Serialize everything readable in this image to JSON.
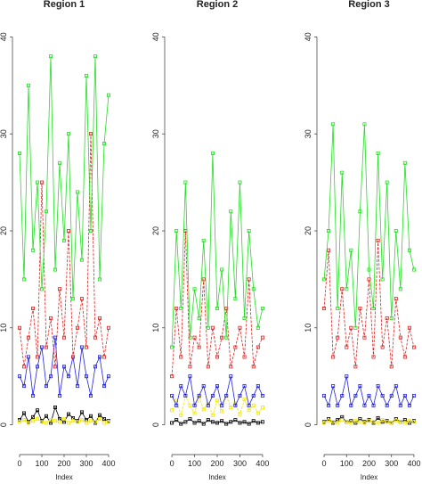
{
  "chart_data": [
    {
      "type": "line",
      "title": "Region 1",
      "xlabel": "Index",
      "x": [
        0,
        20,
        40,
        60,
        80,
        100,
        120,
        140,
        160,
        180,
        200,
        220,
        240,
        260,
        280,
        300,
        320,
        340,
        360,
        380,
        400
      ],
      "xlim": [
        -16,
        416
      ],
      "ylim": [
        -1.6,
        41.6
      ],
      "xticks": [
        0,
        100,
        200,
        300,
        400
      ],
      "yticks": [
        0,
        10,
        20,
        30,
        40
      ],
      "series": [
        {
          "color": "#000000",
          "values": [
            0.5,
            1.2,
            0.3,
            0.8,
            1.5,
            0.4,
            0.9,
            0.2,
            1.8,
            0.6,
            0.3,
            1.1,
            0.7,
            0.4,
            1.3,
            0.5,
            0.9,
            0.2,
            1.0,
            0.6,
            0.4
          ]
        },
        {
          "color": "#f2e600",
          "values": [
            0.3,
            0.5,
            0.2,
            0.4,
            0.6,
            0.3,
            0.2,
            0.5,
            0.4,
            0.3,
            0.6,
            0.2,
            0.4,
            0.3,
            0.5,
            0.2,
            0.4,
            0.3,
            0.6,
            0.2,
            0.3
          ]
        },
        {
          "color": "#2020e0",
          "values": [
            5,
            4,
            7,
            3,
            6,
            8,
            4,
            5,
            9,
            3,
            6,
            5,
            7,
            4,
            8,
            5,
            3,
            6,
            7,
            4,
            5
          ]
        },
        {
          "color": "#e02020",
          "values": [
            10,
            6,
            9,
            12,
            7,
            25,
            8,
            11,
            6,
            14,
            9,
            20,
            7,
            10,
            13,
            8,
            30,
            9,
            11,
            7,
            10
          ]
        },
        {
          "color": "#22dd22",
          "values": [
            28,
            15,
            35,
            18,
            25,
            14,
            22,
            38,
            16,
            27,
            19,
            30,
            13,
            24,
            17,
            36,
            20,
            38,
            15,
            29,
            34
          ]
        }
      ]
    },
    {
      "type": "line",
      "title": "Region 2",
      "xlabel": "Index",
      "x": [
        0,
        20,
        40,
        60,
        80,
        100,
        120,
        140,
        160,
        180,
        200,
        220,
        240,
        260,
        280,
        300,
        320,
        340,
        360,
        380,
        400
      ],
      "xlim": [
        -16,
        416
      ],
      "ylim": [
        -1.6,
        41.6
      ],
      "xticks": [
        0,
        100,
        200,
        300,
        400
      ],
      "yticks": [
        0,
        10,
        20,
        30,
        40
      ],
      "series": [
        {
          "color": "#000000",
          "values": [
            0.2,
            0.5,
            0.1,
            0.3,
            0.6,
            0.2,
            0.4,
            0.1,
            0.5,
            0.3,
            0.2,
            0.4,
            0.1,
            0.3,
            0.5,
            0.2,
            0.3,
            0.1,
            0.4,
            0.2,
            0.3
          ]
        },
        {
          "color": "#f2e600",
          "values": [
            1.5,
            2.5,
            1.0,
            3.0,
            2.0,
            1.2,
            2.8,
            1.6,
            2.2,
            1.0,
            2.5,
            1.4,
            3.0,
            1.8,
            2.2,
            1.1,
            2.6,
            1.5,
            2.0,
            1.2,
            1.8
          ]
        },
        {
          "color": "#2020e0",
          "values": [
            3,
            2,
            4,
            3,
            5,
            2,
            3,
            4,
            2,
            3,
            4,
            2,
            3,
            5,
            2,
            3,
            4,
            2,
            3,
            4,
            3
          ]
        },
        {
          "color": "#e02020",
          "values": [
            5,
            12,
            7,
            20,
            6,
            9,
            8,
            15,
            6,
            10,
            7,
            9,
            12,
            6,
            8,
            10,
            7,
            15,
            6,
            8,
            9
          ]
        },
        {
          "color": "#22dd22",
          "values": [
            8,
            20,
            12,
            25,
            9,
            14,
            11,
            19,
            10,
            28,
            12,
            16,
            9,
            22,
            13,
            25,
            11,
            20,
            14,
            10,
            12
          ]
        }
      ]
    },
    {
      "type": "line",
      "title": "Region 3",
      "xlabel": "Index",
      "x": [
        0,
        20,
        40,
        60,
        80,
        100,
        120,
        140,
        160,
        180,
        200,
        220,
        240,
        260,
        280,
        300,
        320,
        340,
        360,
        380,
        400
      ],
      "xlim": [
        -16,
        416
      ],
      "ylim": [
        -1.6,
        41.6
      ],
      "xticks": [
        0,
        100,
        200,
        300,
        400
      ],
      "yticks": [
        0,
        10,
        20,
        30,
        40
      ],
      "series": [
        {
          "color": "#000000",
          "values": [
            0.3,
            0.6,
            0.2,
            0.5,
            0.8,
            0.3,
            0.4,
            0.2,
            0.6,
            0.3,
            0.5,
            0.2,
            0.7,
            0.3,
            0.4,
            0.2,
            0.6,
            0.3,
            0.5,
            0.2,
            0.4
          ]
        },
        {
          "color": "#f2e600",
          "values": [
            0.2,
            0.4,
            0.3,
            0.2,
            0.5,
            0.3,
            0.2,
            0.4,
            0.3,
            0.2,
            0.4,
            0.3,
            0.2,
            0.5,
            0.3,
            0.2,
            0.4,
            0.3,
            0.2,
            0.4,
            0.3
          ]
        },
        {
          "color": "#2020e0",
          "values": [
            3,
            2,
            4,
            2,
            3,
            5,
            2,
            3,
            4,
            2,
            3,
            2,
            4,
            3,
            2,
            3,
            4,
            2,
            3,
            2,
            3
          ]
        },
        {
          "color": "#e02020",
          "values": [
            12,
            18,
            7,
            9,
            14,
            8,
            10,
            6,
            12,
            9,
            15,
            7,
            19,
            8,
            11,
            6,
            13,
            9,
            7,
            10,
            8
          ]
        },
        {
          "color": "#22dd22",
          "values": [
            15,
            20,
            31,
            12,
            26,
            14,
            18,
            10,
            22,
            31,
            16,
            12,
            28,
            15,
            25,
            11,
            20,
            14,
            27,
            18,
            16
          ]
        }
      ]
    }
  ]
}
